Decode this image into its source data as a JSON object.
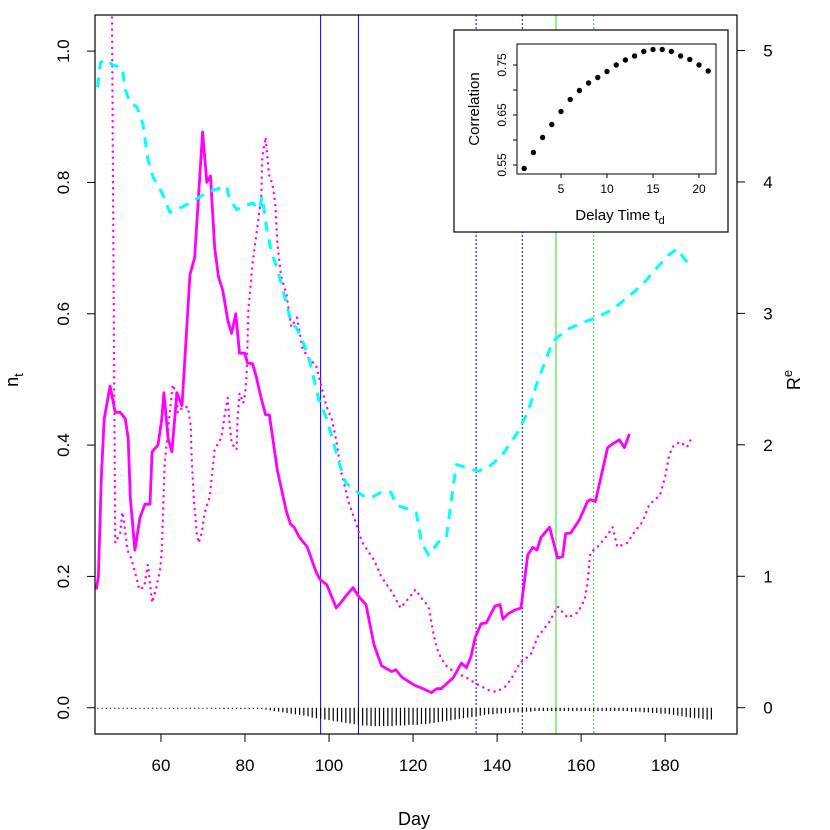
{
  "chart_data": {
    "type": "line",
    "xlabel": "Day",
    "ylabel_left": "n",
    "ylabel_left_sub": "t",
    "ylabel_right": "R",
    "ylabel_right_sup": "e",
    "xlim": [
      44.3,
      197.1
    ],
    "ylim_left": [
      -0.04,
      1.055
    ],
    "ylim_right": [
      -0.2,
      5.27
    ],
    "x_ticks": [
      60,
      80,
      100,
      120,
      140,
      160,
      180
    ],
    "y_left_ticks": [
      "0.0",
      "0.2",
      "0.4",
      "0.6",
      "0.8",
      "1.0"
    ],
    "y_right_ticks": [
      "0",
      "1",
      "2",
      "3",
      "4",
      "5"
    ],
    "grid": false,
    "colors": {
      "solid": "#FF00FF",
      "dotted": "#FF00FF",
      "dashed": "#00FFFF",
      "hatch": "#000000",
      "blue": "#0000FF",
      "green": "#90EE90"
    },
    "series": [
      {
        "style": "solid",
        "axis": "left",
        "color": "#FF00FF",
        "x": [
          44.6,
          45.1,
          45.8,
          46.5,
          47.9,
          49.1,
          50.3,
          51.5,
          52.2,
          52.7,
          53.8,
          55.0,
          56.2,
          57.4,
          57.9,
          59.3,
          60.2,
          60.7,
          61.7,
          62.6,
          63.8,
          65.0,
          66.9,
          68.0,
          69.9,
          70.9,
          71.8,
          72.8,
          73.7,
          74.7,
          75.9,
          76.8,
          77.8,
          78.7,
          79.9,
          80.6,
          81.8,
          82.7,
          83.9,
          84.9,
          85.8,
          87.7,
          89.8,
          90.8,
          91.7,
          92.9,
          94.8,
          96.9,
          97.9,
          99.5,
          101.7,
          102.8,
          104.0,
          105.7,
          107.1,
          108.8,
          110.7,
          112.5,
          114.9,
          115.9,
          117.3,
          119.4,
          120.8,
          122.0,
          124.4,
          125.6,
          126.7,
          129.6,
          131.5,
          132.7,
          133.8,
          134.8,
          136.2,
          137.4,
          139.5,
          140.7,
          141.4,
          142.6,
          144.3,
          145.7,
          147.3,
          148.5,
          149.5,
          150.4,
          152.5,
          154.4,
          155.6,
          156.3,
          157.5,
          159.6,
          161.5,
          162.2,
          163.4,
          166.3,
          167.5,
          169.1,
          170.3,
          171.5
        ],
        "y": [
          0.18,
          0.2,
          0.35,
          0.44,
          0.49,
          0.45,
          0.45,
          0.44,
          0.41,
          0.32,
          0.24,
          0.29,
          0.31,
          0.31,
          0.39,
          0.4,
          0.44,
          0.48,
          0.41,
          0.39,
          0.48,
          0.46,
          0.66,
          0.685,
          0.877,
          0.8,
          0.81,
          0.7,
          0.656,
          0.636,
          0.59,
          0.57,
          0.6,
          0.54,
          0.54,
          0.525,
          0.524,
          0.504,
          0.47,
          0.446,
          0.446,
          0.362,
          0.3,
          0.28,
          0.275,
          0.26,
          0.245,
          0.207,
          0.195,
          0.187,
          0.152,
          0.16,
          0.17,
          0.183,
          0.169,
          0.157,
          0.096,
          0.064,
          0.055,
          0.058,
          0.047,
          0.038,
          0.033,
          0.03,
          0.023,
          0.029,
          0.029,
          0.046,
          0.068,
          0.061,
          0.078,
          0.107,
          0.128,
          0.129,
          0.155,
          0.157,
          0.135,
          0.143,
          0.149,
          0.152,
          0.233,
          0.244,
          0.24,
          0.259,
          0.275,
          0.228,
          0.23,
          0.265,
          0.266,
          0.286,
          0.314,
          0.317,
          0.314,
          0.396,
          0.402,
          0.408,
          0.396,
          0.417
        ]
      },
      {
        "style": "dotted",
        "axis": "left",
        "color": "#FF00FF",
        "x": [
          48.2,
          49.1,
          50.3,
          50.8,
          51.2,
          52.0,
          52.9,
          54.3,
          54.8,
          56.0,
          56.9,
          57.4,
          57.9,
          58.8,
          59.8,
          60.2,
          60.5,
          60.9,
          61.4,
          62.1,
          62.8,
          63.8,
          64.0,
          65.2,
          66.4,
          67.1,
          67.3,
          67.8,
          68.5,
          69.0,
          69.7,
          70.4,
          71.6,
          72.3,
          72.8,
          74.4,
          75.1,
          75.9,
          76.3,
          76.8,
          78.0,
          78.2,
          78.7,
          79.6,
          80.1,
          80.4,
          80.8,
          81.8,
          83.0,
          83.9,
          84.1,
          84.9,
          85.3,
          85.8,
          86.5,
          87.2,
          87.7,
          88.6,
          89.8,
          91.0,
          92.4,
          93.6,
          95.3,
          96.9,
          98.1,
          99.3,
          100.7,
          101.7,
          102.8,
          104.7,
          106.4,
          107.8,
          110.7,
          112.5,
          114.9,
          117.0,
          118.2,
          120.6,
          122.0,
          123.7,
          124.9,
          126.0,
          127.7,
          130.1,
          132.4,
          135.5,
          137.9,
          139.8,
          141.9,
          143.3,
          145.4,
          148.0,
          149.7,
          152.5,
          154.4,
          156.8,
          159.2,
          160.8,
          161.5,
          162.2,
          163.9,
          166.3,
          167.5,
          168.6,
          171.0,
          172.7,
          174.6,
          176.2,
          178.8,
          180.0,
          180.9,
          181.7,
          183.5,
          185.2,
          186.4
        ],
        "y": [
          1.2,
          0.251,
          0.266,
          0.298,
          0.283,
          0.24,
          0.228,
          0.195,
          0.18,
          0.184,
          0.218,
          0.19,
          0.16,
          0.18,
          0.21,
          0.24,
          0.301,
          0.373,
          0.405,
          0.449,
          0.492,
          0.476,
          0.449,
          0.458,
          0.458,
          0.428,
          0.382,
          0.321,
          0.266,
          0.251,
          0.266,
          0.297,
          0.321,
          0.362,
          0.393,
          0.412,
          0.443,
          0.472,
          0.434,
          0.403,
          0.393,
          0.435,
          0.479,
          0.464,
          0.481,
          0.511,
          0.606,
          0.677,
          0.735,
          0.781,
          0.837,
          0.869,
          0.839,
          0.808,
          0.799,
          0.769,
          0.708,
          0.656,
          0.632,
          0.58,
          0.594,
          0.549,
          0.53,
          0.522,
          0.492,
          0.461,
          0.438,
          0.408,
          0.362,
          0.312,
          0.282,
          0.253,
          0.225,
          0.199,
          0.177,
          0.152,
          0.161,
          0.18,
          0.167,
          0.154,
          0.111,
          0.084,
          0.065,
          0.053,
          0.047,
          0.035,
          0.027,
          0.024,
          0.032,
          0.043,
          0.068,
          0.081,
          0.108,
          0.131,
          0.154,
          0.137,
          0.145,
          0.164,
          0.19,
          0.236,
          0.245,
          0.263,
          0.275,
          0.245,
          0.251,
          0.268,
          0.283,
          0.309,
          0.324,
          0.352,
          0.382,
          0.397,
          0.405,
          0.397,
          0.412
        ]
      },
      {
        "style": "dashed",
        "axis": "right",
        "color": "#00FFFF",
        "x": [
          44.9,
          45.6,
          47.2,
          48.4,
          50.8,
          51.5,
          52.7,
          54.3,
          55.7,
          56.9,
          58.1,
          60.2,
          62.1,
          63.8,
          66.9,
          70.9,
          75.6,
          76.3,
          78.0,
          79.4,
          81.8,
          83.4,
          84.1,
          85.1,
          86.3,
          87.5,
          88.6,
          89.8,
          91.0,
          92.2,
          93.6,
          95.3,
          97.6,
          99.3,
          100.7,
          102.4,
          104.0,
          105.9,
          108.3,
          110.2,
          112.5,
          114.7,
          116.1,
          118.9,
          120.8,
          122.0,
          123.7,
          126.0,
          127.9,
          129.1,
          130.3,
          132.4,
          135.5,
          137.9,
          140.9,
          143.3,
          145.0,
          147.3,
          149.2,
          152.1,
          153.3,
          156.8,
          160.4,
          163.9,
          167.5,
          171.0,
          174.6,
          178.1,
          181.0,
          182.9,
          185.2
        ],
        "y": [
          4.72,
          4.91,
          4.93,
          4.89,
          4.87,
          4.7,
          4.6,
          4.57,
          4.44,
          4.17,
          4.04,
          3.92,
          3.77,
          3.79,
          3.84,
          3.92,
          3.97,
          3.87,
          3.79,
          3.81,
          3.84,
          3.79,
          3.89,
          3.66,
          3.46,
          3.36,
          3.23,
          3.08,
          2.93,
          2.89,
          2.8,
          2.65,
          2.34,
          2.21,
          2.06,
          1.86,
          1.71,
          1.66,
          1.61,
          1.6,
          1.64,
          1.64,
          1.54,
          1.51,
          1.48,
          1.26,
          1.16,
          1.26,
          1.29,
          1.58,
          1.85,
          1.83,
          1.8,
          1.83,
          1.91,
          2.02,
          2.1,
          2.25,
          2.44,
          2.69,
          2.79,
          2.88,
          2.93,
          2.97,
          3.03,
          3.12,
          3.22,
          3.35,
          3.45,
          3.49,
          3.39
        ]
      }
    ],
    "hatch": {
      "axis": "left",
      "start_day": 45,
      "values": [
        -0.001,
        -0.001,
        -0.001,
        -0.001,
        -0.001,
        -0.001,
        -0.001,
        -0.001,
        -0.001,
        -0.001,
        -0.001,
        -0.001,
        -0.001,
        -0.001,
        -0.001,
        -0.001,
        -0.001,
        -0.001,
        -0.001,
        -0.001,
        -0.001,
        -0.001,
        -0.001,
        -0.001,
        -0.001,
        -0.001,
        -0.001,
        -0.001,
        -0.001,
        -0.001,
        -0.002,
        -0.002,
        -0.002,
        -0.002,
        -0.002,
        -0.002,
        -0.002,
        -0.002,
        -0.002,
        -0.002,
        -0.003,
        -0.004,
        -0.005,
        -0.006,
        -0.007,
        -0.008,
        -0.009,
        -0.01,
        -0.011,
        -0.012,
        -0.013,
        -0.015,
        -0.016,
        -0.017,
        -0.018,
        -0.019,
        -0.02,
        -0.021,
        -0.022,
        -0.023,
        -0.024,
        -0.025,
        -0.026,
        -0.027,
        -0.027,
        -0.028,
        -0.028,
        -0.028,
        -0.028,
        -0.028,
        -0.028,
        -0.027,
        -0.027,
        -0.027,
        -0.026,
        -0.026,
        -0.026,
        -0.025,
        -0.025,
        -0.024,
        -0.023,
        -0.022,
        -0.021,
        -0.02,
        -0.019,
        -0.018,
        -0.017,
        -0.016,
        -0.015,
        -0.014,
        -0.013,
        -0.012,
        -0.011,
        -0.01,
        -0.01,
        -0.009,
        -0.009,
        -0.008,
        -0.008,
        -0.007,
        -0.007,
        -0.006,
        -0.006,
        -0.006,
        -0.005,
        -0.005,
        -0.005,
        -0.005,
        -0.005,
        -0.005,
        -0.005,
        -0.005,
        -0.005,
        -0.005,
        -0.005,
        -0.005,
        -0.005,
        -0.005,
        -0.005,
        -0.005,
        -0.005,
        -0.005,
        -0.005,
        -0.005,
        -0.005,
        -0.005,
        -0.005,
        -0.006,
        -0.006,
        -0.006,
        -0.007,
        -0.007,
        -0.008,
        -0.008,
        -0.009,
        -0.009,
        -0.01,
        -0.011,
        -0.012,
        -0.013,
        -0.014,
        -0.015,
        -0.016,
        -0.016,
        -0.017,
        -0.018,
        -0.018
      ]
    },
    "vlines": [
      {
        "x": 98,
        "color": "#0000FF",
        "style": "solid"
      },
      {
        "x": 107,
        "color": "#0000FF",
        "style": "solid"
      },
      {
        "x": 135,
        "color": "#0000FF",
        "style": "dotted"
      },
      {
        "x": 146,
        "color": "#0000FF",
        "style": "dotted"
      },
      {
        "x": 154,
        "color": "#90EE90",
        "style": "solid"
      },
      {
        "x": 163,
        "color": "#32CD32",
        "style": "dotted"
      }
    ],
    "inset": {
      "type": "scatter",
      "xlabel": "Delay Time t",
      "xlabel_sub": "d",
      "ylabel": "Correlation",
      "x_ticks": [
        5,
        10,
        15,
        20
      ],
      "y_ticks": [
        0.55,
        0.6,
        0.65,
        0.7,
        0.75
      ],
      "y_tick_labels": [
        "0.55",
        "",
        "0.65",
        "",
        "0.75"
      ],
      "x": [
        1,
        2,
        3,
        4,
        5,
        6,
        7,
        8,
        9,
        10,
        11,
        12,
        13,
        14,
        15,
        16,
        17,
        18,
        19,
        20,
        21
      ],
      "y": [
        0.543,
        0.575,
        0.605,
        0.631,
        0.657,
        0.681,
        0.699,
        0.714,
        0.725,
        0.737,
        0.75,
        0.76,
        0.768,
        0.777,
        0.781,
        0.781,
        0.777,
        0.768,
        0.761,
        0.75,
        0.738
      ]
    }
  }
}
